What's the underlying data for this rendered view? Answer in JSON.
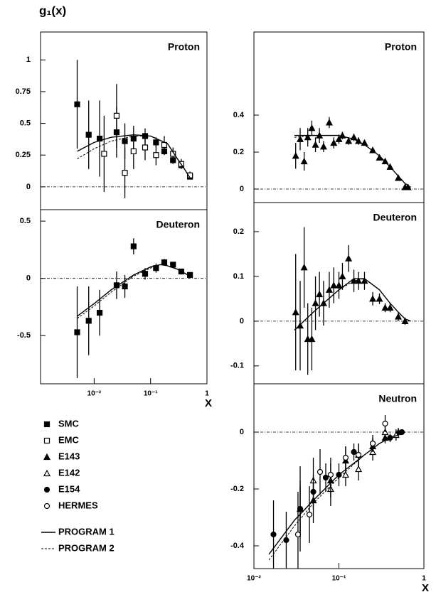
{
  "ylabel": "g₁(x)",
  "legend": [
    {
      "name": "SMC",
      "marker": "square-filled"
    },
    {
      "name": "EMC",
      "marker": "square-open"
    },
    {
      "name": "E143",
      "marker": "triangle-filled"
    },
    {
      "name": "E142",
      "marker": "triangle-open"
    },
    {
      "name": "E154",
      "marker": "circle-filled"
    },
    {
      "name": "HERMES",
      "marker": "circle-open"
    },
    {
      "name": "PROGRAM 1",
      "style": "solid"
    },
    {
      "name": "PROGRAM 2",
      "style": "dashed"
    }
  ],
  "chart_data": [
    {
      "type": "scatter",
      "label": "Proton",
      "log_x": true,
      "zero_line": true,
      "xlim": [
        0.00112,
        1
      ],
      "ylim": [
        -0.18,
        1.22
      ],
      "yticks": [
        0,
        0.25,
        0.5,
        0.75,
        1
      ],
      "series": [
        {
          "name": "SMC",
          "marker": "square-filled",
          "x": [
            0.005,
            0.008,
            0.0125,
            0.025,
            0.035,
            0.05,
            0.08,
            0.125,
            0.175,
            0.25,
            0.35,
            0.5
          ],
          "values": [
            0.65,
            0.41,
            0.38,
            0.43,
            0.36,
            0.38,
            0.4,
            0.35,
            0.28,
            0.21,
            0.17,
            0.08
          ],
          "errors": [
            0.35,
            0.27,
            0.3,
            0.2,
            0.14,
            0.1,
            0.06,
            0.04,
            0.03,
            0.03,
            0.02,
            0.02
          ]
        },
        {
          "name": "EMC",
          "marker": "square-open",
          "x": [
            0.015,
            0.025,
            0.035,
            0.05,
            0.08,
            0.125,
            0.175,
            0.25,
            0.35,
            0.5
          ],
          "values": [
            0.26,
            0.56,
            0.11,
            0.28,
            0.31,
            0.25,
            0.33,
            0.26,
            0.18,
            0.09
          ],
          "errors": [
            0.3,
            0.25,
            0.2,
            0.14,
            0.1,
            0.08,
            0.07,
            0.05,
            0.04,
            0.03
          ]
        },
        {
          "name": "PROGRAM 1",
          "style": "solid",
          "x": [
            0.005,
            0.01,
            0.02,
            0.05,
            0.1,
            0.2,
            0.3,
            0.4,
            0.5
          ],
          "values": [
            0.28,
            0.35,
            0.39,
            0.41,
            0.4,
            0.34,
            0.22,
            0.14,
            0.07
          ]
        },
        {
          "name": "PROGRAM 2",
          "style": "dashed",
          "x": [
            0.005,
            0.01,
            0.02,
            0.05,
            0.1,
            0.2,
            0.3,
            0.4,
            0.5
          ],
          "values": [
            0.22,
            0.3,
            0.36,
            0.4,
            0.4,
            0.34,
            0.22,
            0.14,
            0.07
          ]
        }
      ]
    },
    {
      "type": "scatter",
      "label": "Deuteron",
      "log_x": true,
      "zero_line": true,
      "xlim": [
        0.00112,
        1
      ],
      "ylim": [
        -0.92,
        0.6
      ],
      "yticks": [
        -0.5,
        0,
        0.5
      ],
      "xticks": [
        {
          "value": 0.01,
          "label": "10⁻²"
        },
        {
          "value": 0.1,
          "label": "10⁻¹"
        },
        1
      ],
      "xlabel": "X",
      "series": [
        {
          "name": "SMC",
          "marker": "square-filled",
          "x": [
            0.005,
            0.008,
            0.0125,
            0.025,
            0.035,
            0.05,
            0.08,
            0.125,
            0.175,
            0.25,
            0.35,
            0.5
          ],
          "values": [
            -0.47,
            -0.37,
            -0.3,
            -0.06,
            -0.07,
            0.28,
            0.04,
            0.09,
            0.14,
            0.12,
            0.06,
            0.03
          ],
          "errors": [
            0.4,
            0.3,
            0.2,
            0.12,
            0.1,
            0.07,
            0.05,
            0.04,
            0.03,
            0.02,
            0.02,
            0.01
          ]
        },
        {
          "name": "PROGRAM 1",
          "style": "solid",
          "x": [
            0.005,
            0.01,
            0.02,
            0.05,
            0.1,
            0.15,
            0.2,
            0.3,
            0.5
          ],
          "values": [
            -0.33,
            -0.22,
            -0.1,
            0.03,
            0.1,
            0.12,
            0.11,
            0.08,
            0.02
          ]
        },
        {
          "name": "PROGRAM 2",
          "style": "dashed",
          "x": [
            0.005,
            0.01,
            0.02,
            0.05,
            0.1,
            0.15,
            0.2,
            0.3,
            0.5
          ],
          "values": [
            -0.35,
            -0.24,
            -0.12,
            0.02,
            0.09,
            0.12,
            0.11,
            0.08,
            0.02
          ]
        }
      ]
    },
    {
      "type": "scatter",
      "label": "Proton",
      "log_x": true,
      "zero_line": true,
      "xlim": [
        0.01,
        1
      ],
      "ylim": [
        -0.073,
        0.85
      ],
      "yticks": [
        0,
        0.2,
        0.4
      ],
      "series": [
        {
          "name": "E143",
          "marker": "triangle-filled",
          "x": [
            0.031,
            0.035,
            0.039,
            0.043,
            0.048,
            0.053,
            0.059,
            0.066,
            0.077,
            0.087,
            0.1,
            0.11,
            0.13,
            0.15,
            0.17,
            0.2,
            0.25,
            0.3,
            0.35,
            0.4,
            0.5,
            0.6,
            0.65
          ],
          "values": [
            0.18,
            0.27,
            0.15,
            0.28,
            0.33,
            0.24,
            0.29,
            0.23,
            0.36,
            0.25,
            0.27,
            0.29,
            0.26,
            0.28,
            0.26,
            0.25,
            0.21,
            0.17,
            0.15,
            0.12,
            0.06,
            0.01,
            0.01
          ],
          "errors": [
            0.07,
            0.06,
            0.05,
            0.05,
            0.04,
            0.04,
            0.04,
            0.03,
            0.03,
            0.03,
            0.025,
            0.02,
            0.02,
            0.02,
            0.02,
            0.015,
            0.015,
            0.015,
            0.01,
            0.01,
            0.01,
            0.01,
            0.01
          ]
        },
        {
          "name": "PROGRAM 1",
          "style": "solid",
          "x": [
            0.03,
            0.05,
            0.1,
            0.15,
            0.2,
            0.3,
            0.4,
            0.5,
            0.6,
            0.7
          ],
          "values": [
            0.29,
            0.29,
            0.29,
            0.27,
            0.24,
            0.18,
            0.12,
            0.07,
            0.03,
            0.01
          ]
        },
        {
          "name": "PROGRAM 2",
          "style": "dashed",
          "x": [
            0.03,
            0.05,
            0.1,
            0.15,
            0.2,
            0.3,
            0.4,
            0.5,
            0.6,
            0.7
          ],
          "values": [
            0.28,
            0.29,
            0.29,
            0.27,
            0.24,
            0.18,
            0.12,
            0.07,
            0.03,
            0.01
          ]
        }
      ]
    },
    {
      "type": "scatter",
      "label": "Deuteron",
      "log_x": true,
      "zero_line": true,
      "xlim": [
        0.01,
        1
      ],
      "ylim": [
        -0.14,
        0.265
      ],
      "yticks": [
        -0.1,
        0,
        0.1,
        0.2
      ],
      "series": [
        {
          "name": "E143",
          "marker": "triangle-filled",
          "x": [
            0.031,
            0.035,
            0.039,
            0.043,
            0.048,
            0.053,
            0.059,
            0.066,
            0.077,
            0.087,
            0.1,
            0.11,
            0.13,
            0.15,
            0.17,
            0.2,
            0.25,
            0.3,
            0.35,
            0.4,
            0.5,
            0.6
          ],
          "values": [
            0.02,
            -0.01,
            0.12,
            -0.04,
            -0.04,
            0.04,
            0.06,
            0.04,
            0.07,
            0.08,
            0.08,
            0.1,
            0.14,
            0.09,
            0.09,
            0.09,
            0.05,
            0.05,
            0.03,
            0.03,
            0.01,
            0
          ],
          "errors": [
            0.13,
            0.1,
            0.09,
            0.08,
            0.07,
            0.06,
            0.05,
            0.05,
            0.04,
            0.04,
            0.03,
            0.03,
            0.03,
            0.025,
            0.02,
            0.02,
            0.015,
            0.012,
            0.01,
            0.01,
            0.01,
            0.008
          ]
        },
        {
          "name": "PROGRAM 1",
          "style": "solid",
          "x": [
            0.03,
            0.05,
            0.1,
            0.15,
            0.2,
            0.3,
            0.4,
            0.5,
            0.6,
            0.7
          ],
          "values": [
            -0.02,
            0.02,
            0.07,
            0.095,
            0.095,
            0.07,
            0.04,
            0.02,
            0.005,
            0
          ]
        },
        {
          "name": "PROGRAM 2",
          "style": "dashed",
          "x": [
            0.03,
            0.05,
            0.1,
            0.15,
            0.2,
            0.3,
            0.4,
            0.5,
            0.6,
            0.7
          ],
          "values": [
            -0.02,
            0.02,
            0.07,
            0.09,
            0.095,
            0.07,
            0.04,
            0.02,
            0.005,
            0
          ]
        }
      ]
    },
    {
      "type": "scatter",
      "label": "Neutron",
      "log_x": true,
      "zero_line": true,
      "xlim": [
        0.01,
        1
      ],
      "ylim": [
        -0.48,
        0.17
      ],
      "yticks": [
        -0.4,
        -0.2,
        0
      ],
      "xticks": [
        {
          "value": 0.01,
          "label": "10⁻²"
        },
        {
          "value": 0.1,
          "label": "10⁻¹"
        },
        1
      ],
      "xlabel": "X",
      "series": [
        {
          "name": "E143",
          "marker": "triangle-filled",
          "x": [
            0.035,
            0.05,
            0.08,
            0.12,
            0.17,
            0.25,
            0.35,
            0.5
          ],
          "values": [
            -0.27,
            -0.24,
            -0.17,
            -0.1,
            -0.08,
            -0.05,
            -0.02,
            0
          ],
          "errors": [
            0.1,
            0.08,
            0.06,
            0.05,
            0.04,
            0.03,
            0.02,
            0.015
          ]
        },
        {
          "name": "E142",
          "marker": "triangle-open",
          "x": [
            0.035,
            0.05,
            0.08,
            0.12,
            0.17,
            0.25,
            0.35,
            0.47
          ],
          "values": [
            -0.27,
            -0.17,
            -0.2,
            -0.15,
            -0.13,
            -0.07,
            0,
            -0.01
          ],
          "errors": [
            0.15,
            0.08,
            0.06,
            0.04,
            0.04,
            0.03,
            0.03,
            0.02
          ]
        },
        {
          "name": "E154",
          "marker": "circle-filled",
          "x": [
            0.017,
            0.024,
            0.035,
            0.05,
            0.07,
            0.1,
            0.15,
            0.25,
            0.4,
            0.55
          ],
          "values": [
            -0.36,
            -0.38,
            -0.27,
            -0.21,
            -0.16,
            -0.15,
            -0.07,
            -0.04,
            -0.02,
            0
          ],
          "errors": [
            0.12,
            0.1,
            0.08,
            0.06,
            0.05,
            0.04,
            0.03,
            0.02,
            0.015,
            0.01
          ]
        },
        {
          "name": "HERMES",
          "marker": "circle-open",
          "x": [
            0.033,
            0.045,
            0.06,
            0.08,
            0.12,
            0.17,
            0.25,
            0.35
          ],
          "values": [
            -0.36,
            -0.29,
            -0.14,
            -0.15,
            -0.09,
            -0.08,
            -0.04,
            0.03
          ],
          "errors": [
            0.15,
            0.1,
            0.08,
            0.06,
            0.04,
            0.04,
            0.03,
            0.03
          ]
        },
        {
          "name": "PROGRAM 1",
          "style": "solid",
          "x": [
            0.015,
            0.03,
            0.05,
            0.1,
            0.2,
            0.3,
            0.4,
            0.5,
            0.6
          ],
          "values": [
            -0.43,
            -0.31,
            -0.24,
            -0.15,
            -0.08,
            -0.04,
            -0.02,
            -0.01,
            0
          ]
        },
        {
          "name": "PROGRAM 2",
          "style": "dashed",
          "x": [
            0.015,
            0.03,
            0.05,
            0.1,
            0.2,
            0.3,
            0.4,
            0.5,
            0.6
          ],
          "values": [
            -0.45,
            -0.33,
            -0.25,
            -0.16,
            -0.08,
            -0.04,
            -0.02,
            -0.01,
            0
          ]
        }
      ]
    }
  ]
}
